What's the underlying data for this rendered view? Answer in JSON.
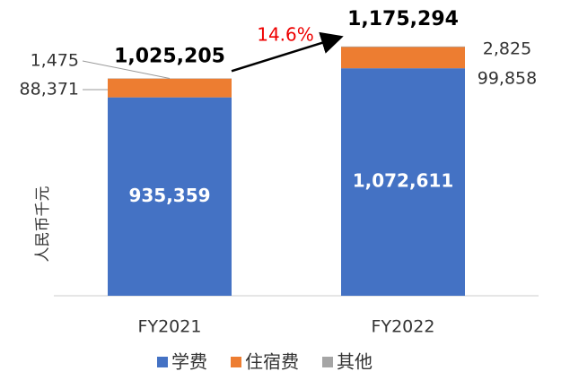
{
  "chart_data": {
    "type": "stacked_bar",
    "y_label": "人民币千元",
    "categories": [
      "FY2021",
      "FY2022"
    ],
    "series": [
      {
        "name": "学费",
        "color": "#4472c4",
        "values": [
          935359,
          1072611
        ],
        "value_labels": [
          "935,359",
          "1,072,611"
        ]
      },
      {
        "name": "住宿费",
        "color": "#ed7d31",
        "values": [
          88371,
          99858
        ],
        "value_labels": [
          "88,371",
          "99,858"
        ]
      },
      {
        "name": "其他",
        "color": "#a5a5a5",
        "values": [
          1475,
          2825
        ],
        "value_labels": [
          "1,475",
          "2,825"
        ]
      }
    ],
    "totals": [
      1025205,
      1175294
    ],
    "total_labels": [
      "1,025,205",
      "1,175,294"
    ],
    "annotation": "14.6%",
    "ylim": [
      0,
      1200000
    ]
  }
}
